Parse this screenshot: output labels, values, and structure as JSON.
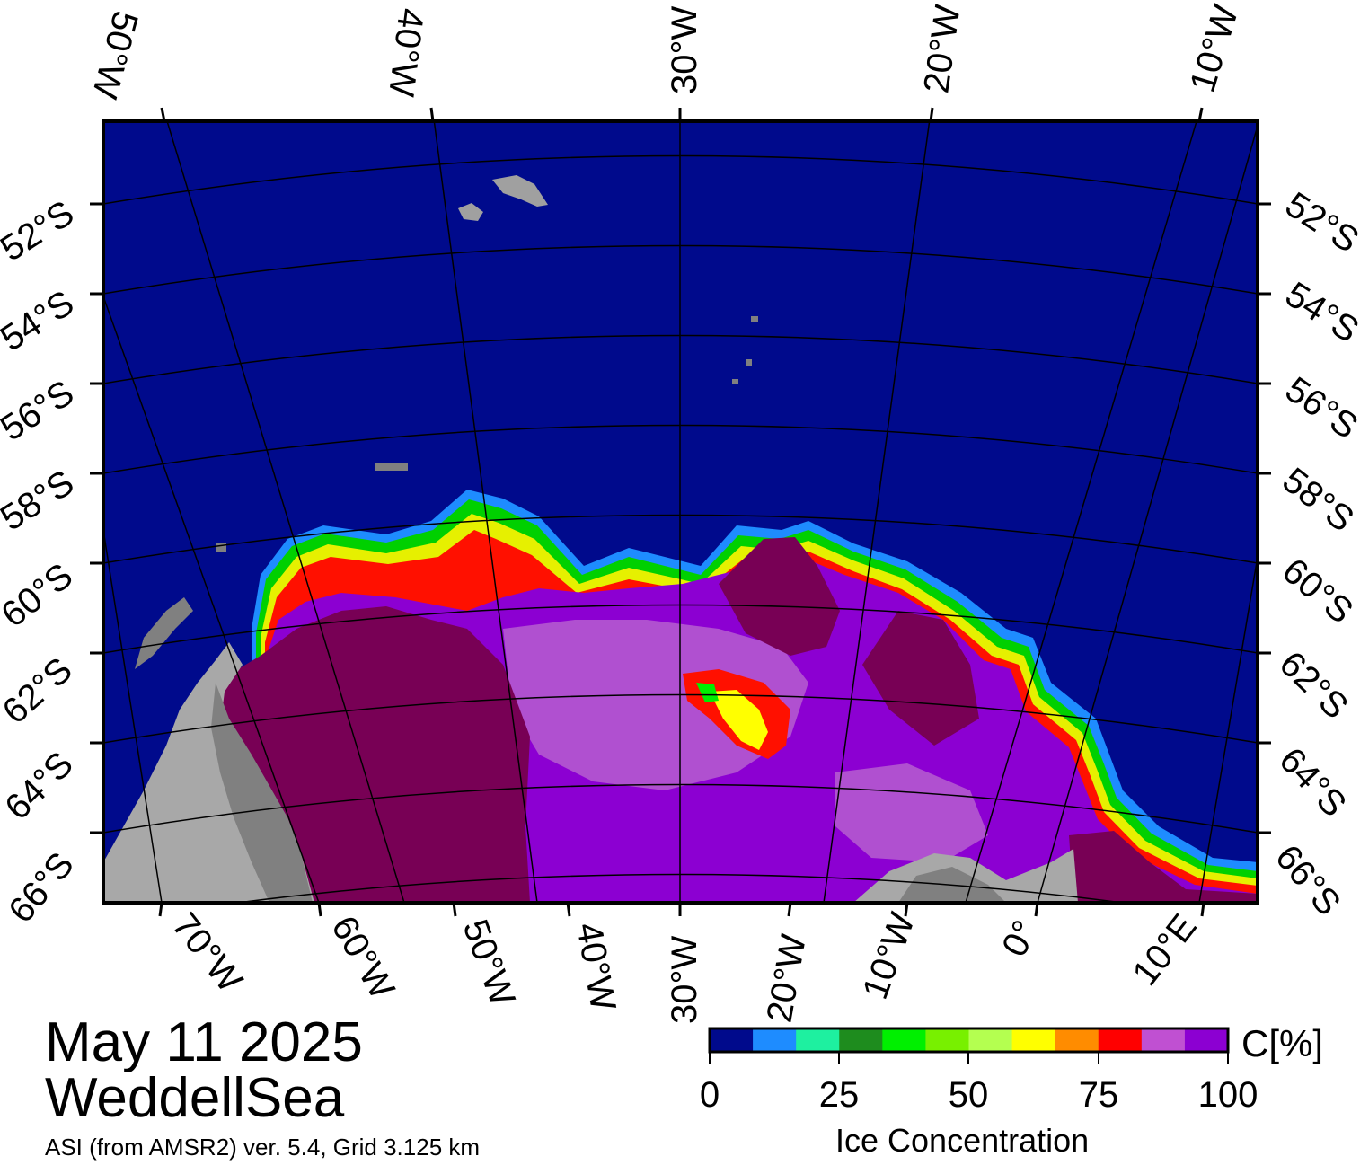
{
  "header": {
    "date": "May 11 2025",
    "region": "WeddellSea",
    "source": "ASI (from AMSR2) ver. 5.4,  Grid 3.125 km"
  },
  "graticule": {
    "top_longitudes": [
      "50°W",
      "40°W",
      "30°W",
      "20°W",
      "10°W"
    ],
    "bottom_longitudes": [
      "70°W",
      "60°W",
      "50°W",
      "40°W",
      "30°W",
      "20°W",
      "10°W",
      "0°",
      "10°E"
    ],
    "latitudes": [
      "52°S",
      "54°S",
      "56°S",
      "58°S",
      "60°S",
      "62°S",
      "64°S",
      "66°S"
    ]
  },
  "colorbar": {
    "title": "Ice Concentration",
    "unit": "C[%]",
    "ticks": [
      "0",
      "25",
      "50",
      "75",
      "100"
    ],
    "range": [
      0,
      100
    ],
    "colors": [
      "#000a8c",
      "#1e8cff",
      "#1ef0a0",
      "#1e8c1e",
      "#00f000",
      "#78f000",
      "#b4ff50",
      "#ffff00",
      "#ff8c00",
      "#ff0000",
      "#c050d2",
      "#8c00d2"
    ]
  },
  "legend_colors": {
    "ocean": "#000a8c",
    "land": "#a0a0a0",
    "land_dark": "#808080",
    "full_ice": "#780055",
    "ice_purple": "#8c00d2"
  }
}
